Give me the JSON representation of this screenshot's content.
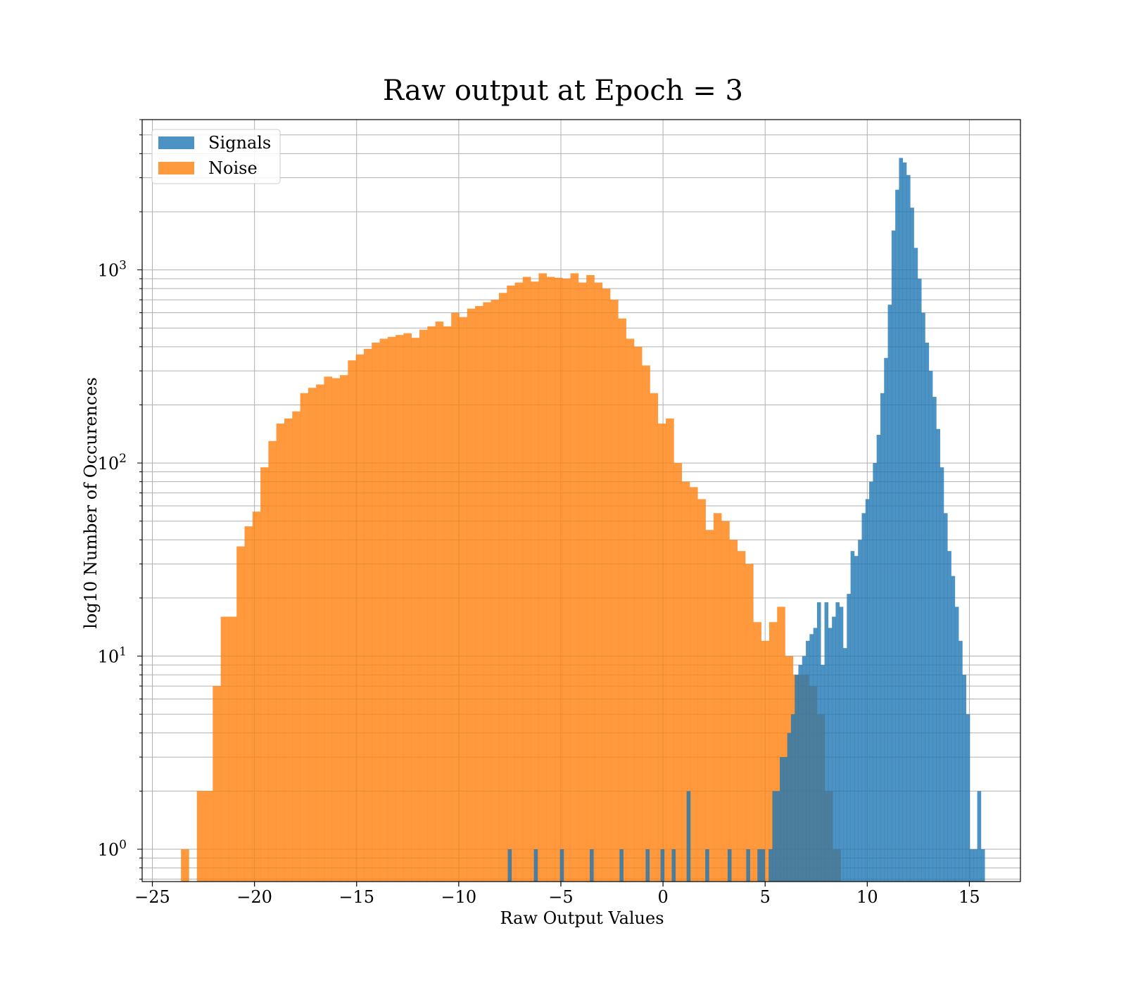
{
  "chart_data": {
    "type": "histogram",
    "title": "Raw output at Epoch = 3",
    "xlabel": "Raw Output Values",
    "ylabel": "log10 Number of Occurences",
    "yscale": "log",
    "xlim": [
      -25.5,
      17.5
    ],
    "ylim": [
      0.68,
      6000
    ],
    "grid": true,
    "legend_position": "upper-left",
    "x_ticks": [
      -25,
      -20,
      -15,
      -10,
      -5,
      0,
      5,
      10,
      15
    ],
    "x_tick_labels": [
      "−25",
      "−20",
      "−15",
      "−10",
      "−5",
      "0",
      "5",
      "10",
      "15"
    ],
    "y_ticks": [
      {
        "value": 1,
        "base": "10",
        "exp": "0"
      },
      {
        "value": 10,
        "base": "10",
        "exp": "1"
      },
      {
        "value": 100,
        "base": "10",
        "exp": "2"
      },
      {
        "value": 1000,
        "base": "10",
        "exp": "3"
      }
    ],
    "series": [
      {
        "name": "Signals",
        "color": "#1f77b4",
        "alpha": 0.8,
        "bin_edges": [
          -7.6,
          15.75
        ],
        "counts": [
          1,
          0,
          0,
          0,
          0,
          0,
          0,
          1,
          0,
          0,
          0,
          0,
          0,
          0,
          1,
          0,
          0,
          0,
          0,
          0,
          0,
          0,
          1,
          0,
          0,
          0,
          0,
          0,
          0,
          0,
          1,
          0,
          0,
          0,
          0,
          0,
          0,
          1,
          0,
          0,
          0,
          1,
          0,
          0,
          1,
          0,
          0,
          0,
          2,
          0,
          0,
          0,
          0,
          1,
          0,
          0,
          0,
          0,
          0,
          1,
          0,
          0,
          0,
          0,
          1,
          0,
          0,
          1,
          1,
          0,
          1,
          2,
          2,
          3,
          3,
          4,
          5,
          8,
          9,
          10,
          12,
          13,
          14,
          19,
          9,
          19,
          14,
          16,
          19,
          18,
          11,
          21,
          35,
          33,
          40,
          55,
          65,
          80,
          100,
          140,
          230,
          350,
          660,
          1600,
          2600,
          3800,
          3600,
          3100,
          2100,
          1300,
          900,
          600,
          420,
          300,
          220,
          150,
          95,
          55,
          35,
          26,
          18,
          12,
          8,
          5,
          1,
          1,
          2,
          1
        ]
      },
      {
        "name": "Noise",
        "color": "#ff7f0e",
        "alpha": 0.8,
        "bin_edges": [
          -23.6,
          8.7
        ],
        "counts": [
          1,
          0,
          2,
          2,
          7,
          16,
          16,
          37,
          47,
          56,
          95,
          130,
          160,
          170,
          185,
          230,
          245,
          255,
          280,
          275,
          285,
          340,
          365,
          390,
          420,
          440,
          450,
          460,
          470,
          445,
          490,
          510,
          540,
          510,
          600,
          570,
          630,
          650,
          680,
          700,
          760,
          830,
          860,
          920,
          870,
          960,
          920,
          910,
          900,
          960,
          860,
          940,
          860,
          800,
          700,
          560,
          440,
          400,
          320,
          230,
          160,
          170,
          100,
          80,
          75,
          65,
          45,
          55,
          50,
          40,
          35,
          30,
          15,
          12,
          15,
          18,
          10,
          8,
          8,
          7,
          5,
          2,
          1
        ]
      }
    ]
  }
}
